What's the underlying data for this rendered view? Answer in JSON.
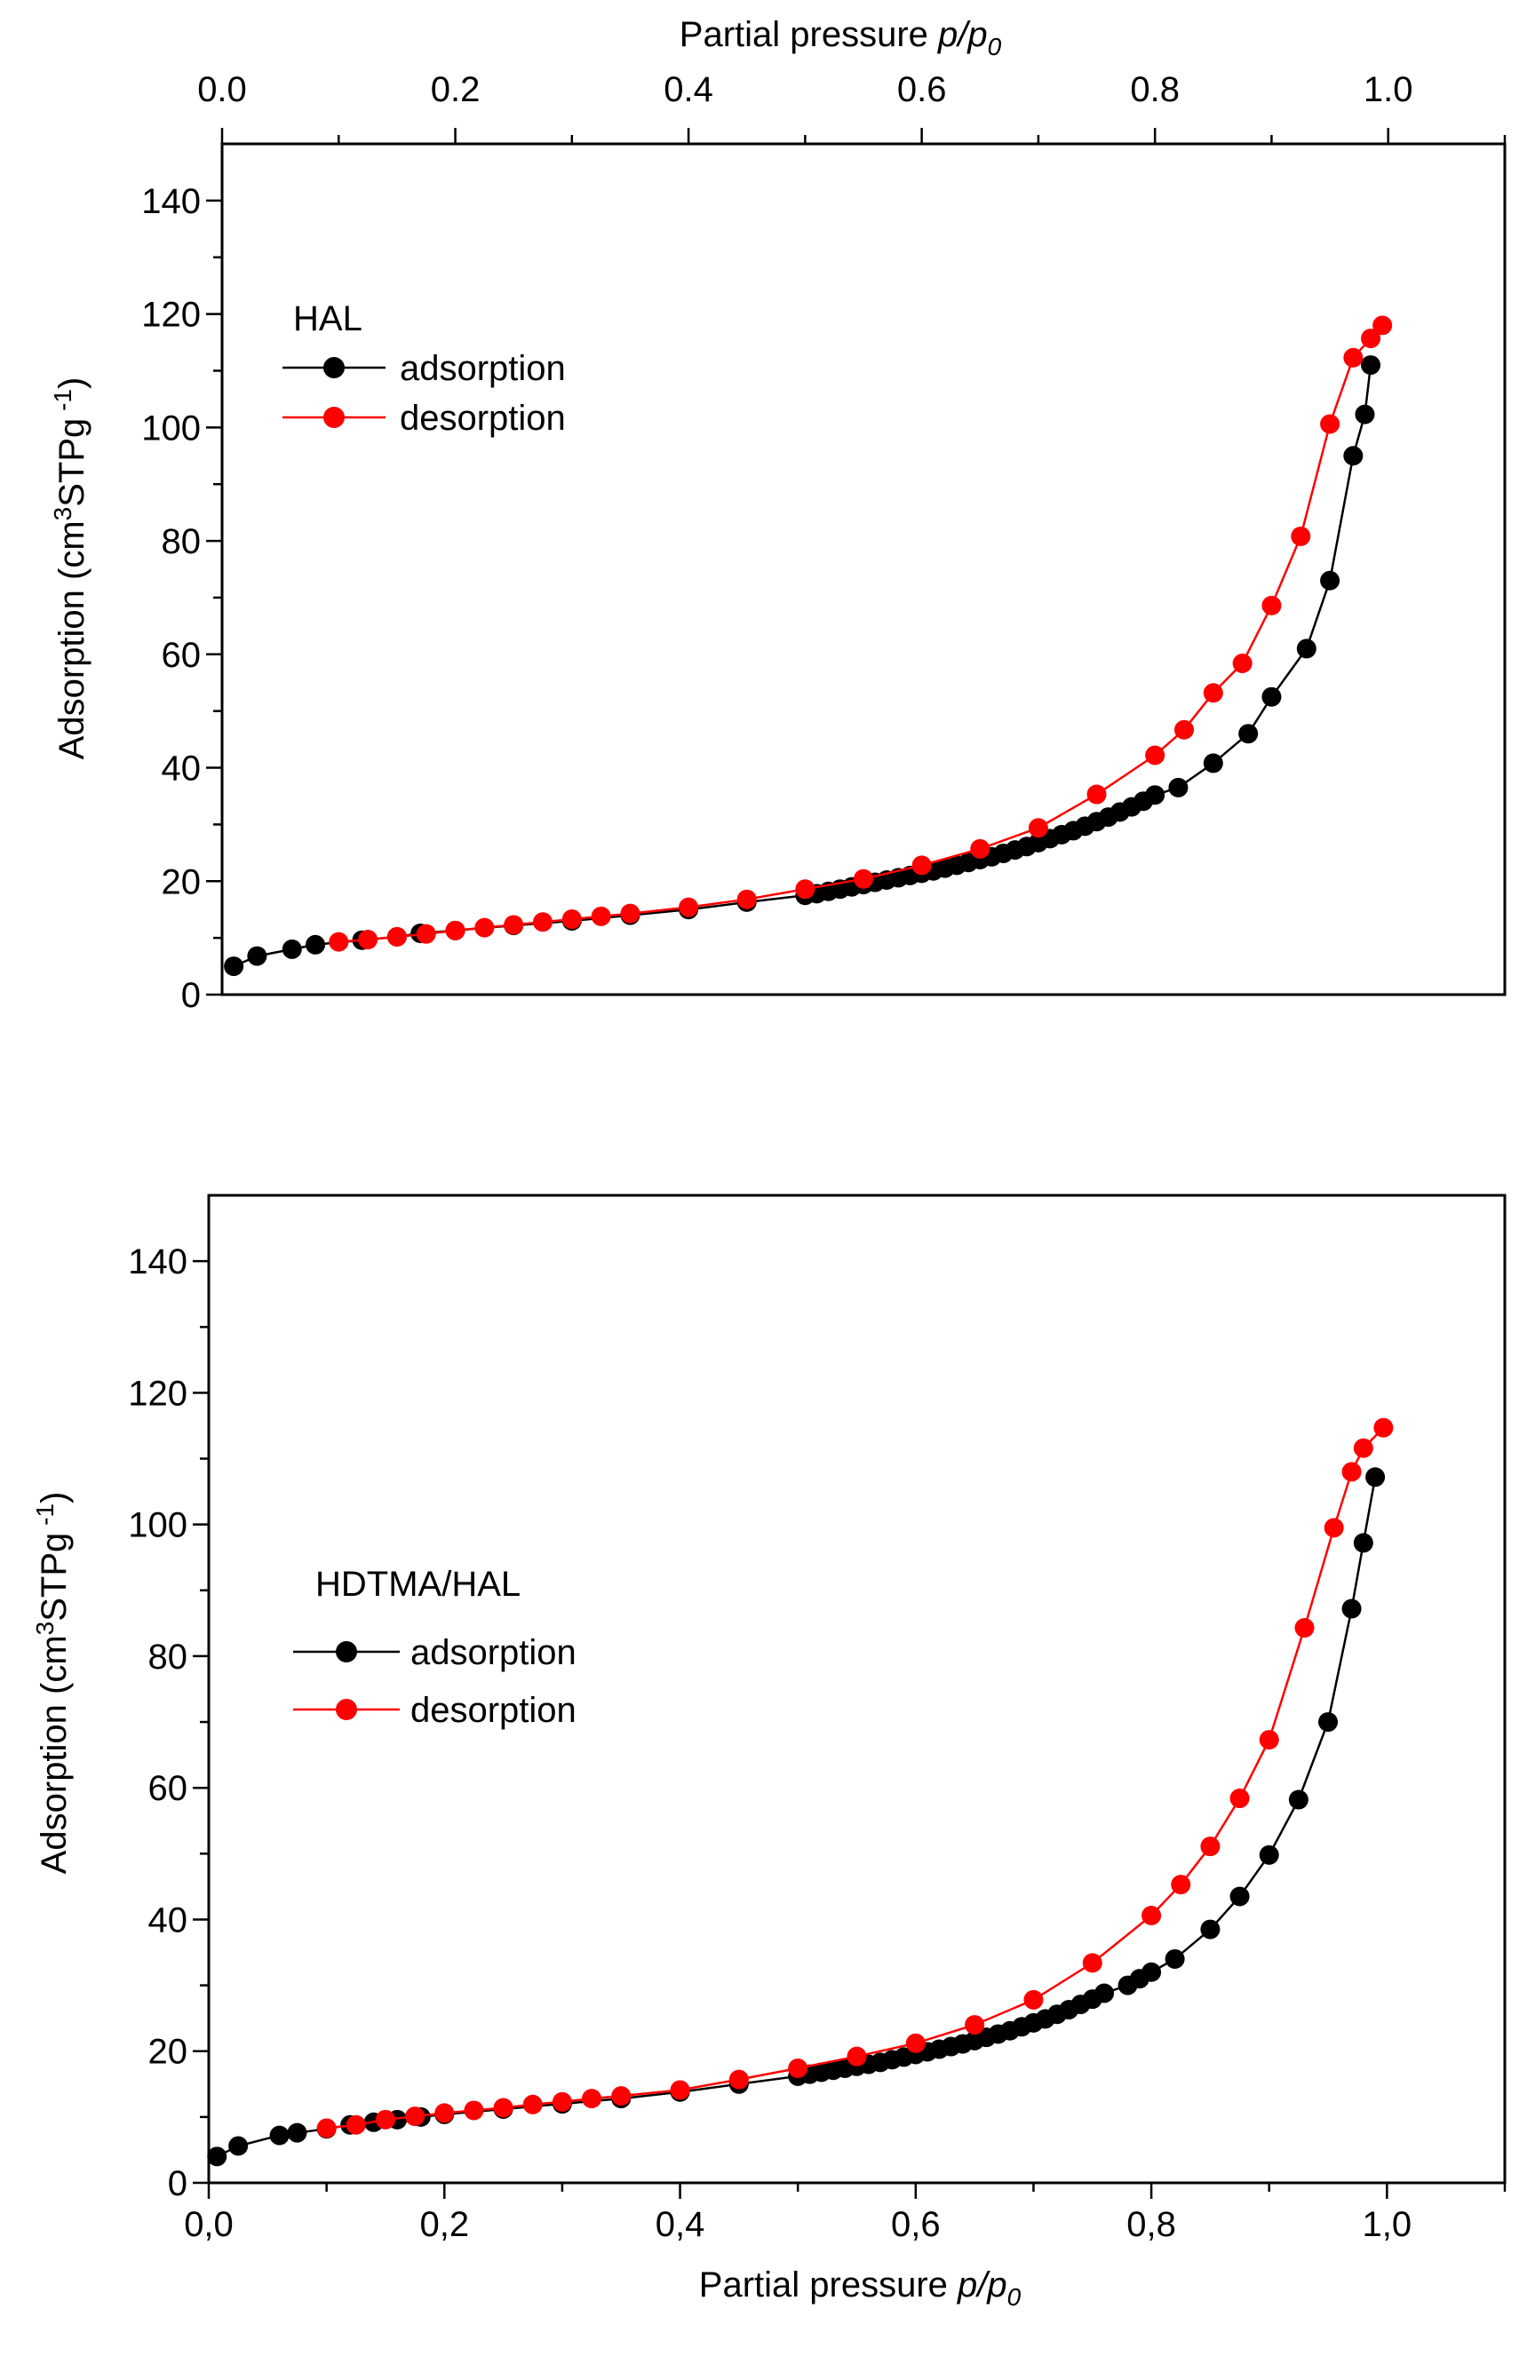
{
  "chart_data": [
    {
      "type": "scatter",
      "panel": "top",
      "title": "",
      "legend_title": "HAL",
      "legend_position": "top-left",
      "x_axis_position": "top",
      "xlabel_prefix": "Partial pressure ",
      "xlabel_var": "p/p",
      "xlabel_sub": "0",
      "ylabel_main": "Adsorption (cm",
      "ylabel_sup1": "3",
      "ylabel_mid": "STPg",
      "ylabel_sup2": " -1",
      "ylabel_end": ")",
      "xlim": [
        0,
        1.1
      ],
      "ylim": [
        0,
        150
      ],
      "x_ticks": [
        0,
        0.2,
        0.4,
        0.6,
        0.8,
        1.0
      ],
      "x_tick_labels": [
        "0.0",
        "0.2",
        "0.4",
        "0.6",
        "0.8",
        "1.0"
      ],
      "y_ticks": [
        0,
        20,
        40,
        60,
        80,
        100,
        120,
        140
      ],
      "y_tick_labels": [
        "0",
        "20",
        "40",
        "60",
        "80",
        "100",
        "120",
        "140"
      ],
      "series": [
        {
          "name": "adsorption",
          "color": "#000000",
          "x": [
            0.01,
            0.03,
            0.06,
            0.08,
            0.12,
            0.15,
            0.17,
            0.2,
            0.25,
            0.3,
            0.35,
            0.4,
            0.45,
            0.5,
            0.51,
            0.52,
            0.53,
            0.54,
            0.55,
            0.56,
            0.57,
            0.58,
            0.59,
            0.6,
            0.61,
            0.62,
            0.63,
            0.64,
            0.65,
            0.66,
            0.67,
            0.68,
            0.69,
            0.7,
            0.71,
            0.72,
            0.73,
            0.74,
            0.75,
            0.76,
            0.77,
            0.78,
            0.79,
            0.8,
            0.82,
            0.85,
            0.88,
            0.9,
            0.93,
            0.95,
            0.97,
            0.98,
            0.985
          ],
          "y": [
            5,
            6.8,
            8,
            8.8,
            9.6,
            10.2,
            10.8,
            11.3,
            12.2,
            13,
            14,
            15,
            16.3,
            17.5,
            17.8,
            18.2,
            18.6,
            19,
            19.4,
            19.8,
            20.2,
            20.6,
            21,
            21.4,
            21.8,
            22.3,
            22.8,
            23.3,
            23.8,
            24.3,
            24.9,
            25.5,
            26.1,
            26.8,
            27.5,
            28.2,
            28.9,
            29.7,
            30.5,
            31.3,
            32.2,
            33.1,
            34.1,
            35.2,
            36.5,
            40.8,
            46,
            52.5,
            61,
            73,
            95,
            102.3,
            111
          ]
        },
        {
          "name": "desorption",
          "color": "#ff0000",
          "x": [
            0.995,
            0.985,
            0.97,
            0.95,
            0.925,
            0.9,
            0.875,
            0.85,
            0.825,
            0.8,
            0.75,
            0.7,
            0.65,
            0.6,
            0.55,
            0.5,
            0.45,
            0.4,
            0.35,
            0.325,
            0.3,
            0.275,
            0.25,
            0.225,
            0.2,
            0.175,
            0.15,
            0.125,
            0.1
          ],
          "y": [
            118,
            115.7,
            112.3,
            100.6,
            80.8,
            68.6,
            58.4,
            53.2,
            46.7,
            42.2,
            35.3,
            29.4,
            25.7,
            22.8,
            20.4,
            18.6,
            16.8,
            15.4,
            14.3,
            13.8,
            13.3,
            12.8,
            12.3,
            11.8,
            11.3,
            10.7,
            10.2,
            9.7,
            9.3
          ]
        }
      ]
    },
    {
      "type": "scatter",
      "panel": "bottom",
      "title": "",
      "legend_title": "HDTMA/HAL",
      "legend_position": "center-left",
      "x_axis_position": "bottom",
      "xlabel_prefix": "Partial pressure ",
      "xlabel_var": "p/p",
      "xlabel_sub": "0",
      "ylabel_main": "Adsorption (cm",
      "ylabel_sup1": "3",
      "ylabel_mid": "STPg",
      "ylabel_sup2": " -1",
      "ylabel_end": ")",
      "xlim": [
        0,
        1.1
      ],
      "ylim": [
        0,
        150
      ],
      "x_ticks": [
        0,
        0.2,
        0.4,
        0.6,
        0.8,
        1.0
      ],
      "x_tick_labels": [
        "0,0",
        "0,2",
        "0,4",
        "0,6",
        "0,8",
        "1,0"
      ],
      "y_ticks": [
        0,
        20,
        40,
        60,
        80,
        100,
        120,
        140
      ],
      "y_tick_labels": [
        "0",
        "20",
        "40",
        "60",
        "80",
        "100",
        "120",
        "140"
      ],
      "series": [
        {
          "name": "adsorption",
          "color": "#000000",
          "x": [
            0.007,
            0.025,
            0.06,
            0.075,
            0.1,
            0.12,
            0.14,
            0.16,
            0.18,
            0.2,
            0.25,
            0.3,
            0.35,
            0.4,
            0.45,
            0.5,
            0.51,
            0.52,
            0.53,
            0.54,
            0.55,
            0.56,
            0.57,
            0.58,
            0.59,
            0.6,
            0.61,
            0.62,
            0.63,
            0.64,
            0.65,
            0.66,
            0.67,
            0.68,
            0.69,
            0.7,
            0.71,
            0.72,
            0.73,
            0.74,
            0.75,
            0.76,
            0.78,
            0.79,
            0.8,
            0.82,
            0.85,
            0.875,
            0.9,
            0.925,
            0.95,
            0.97,
            0.98,
            0.99
          ],
          "y": [
            4,
            5.6,
            7.2,
            7.6,
            8.2,
            8.8,
            9.2,
            9.6,
            10,
            10.4,
            11.2,
            12,
            12.8,
            13.8,
            15,
            16.2,
            16.5,
            16.8,
            17.1,
            17.4,
            17.7,
            18,
            18.3,
            18.7,
            19.1,
            19.5,
            19.9,
            20.3,
            20.7,
            21.1,
            21.6,
            22.1,
            22.6,
            23.1,
            23.7,
            24.3,
            24.9,
            25.6,
            26.3,
            27.1,
            27.9,
            28.8,
            30,
            31,
            32,
            34,
            38.5,
            43.5,
            49.8,
            58.2,
            70,
            87.2,
            97.2,
            107.2
          ]
        },
        {
          "name": "desorption",
          "color": "#ff0000",
          "x": [
            0.997,
            0.98,
            0.97,
            0.955,
            0.93,
            0.9,
            0.875,
            0.85,
            0.825,
            0.8,
            0.75,
            0.7,
            0.65,
            0.6,
            0.55,
            0.5,
            0.45,
            0.4,
            0.35,
            0.325,
            0.3,
            0.275,
            0.25,
            0.225,
            0.2,
            0.175,
            0.15,
            0.125,
            0.1
          ],
          "y": [
            114.7,
            111.6,
            108,
            99.5,
            84.3,
            67.3,
            58.4,
            51.1,
            45.3,
            40.6,
            33.4,
            27.8,
            24,
            21.2,
            19.2,
            17.4,
            15.7,
            14.1,
            13.2,
            12.8,
            12.3,
            11.9,
            11.4,
            11,
            10.6,
            10.1,
            9.6,
            8.8,
            8.3
          ]
        }
      ]
    }
  ]
}
